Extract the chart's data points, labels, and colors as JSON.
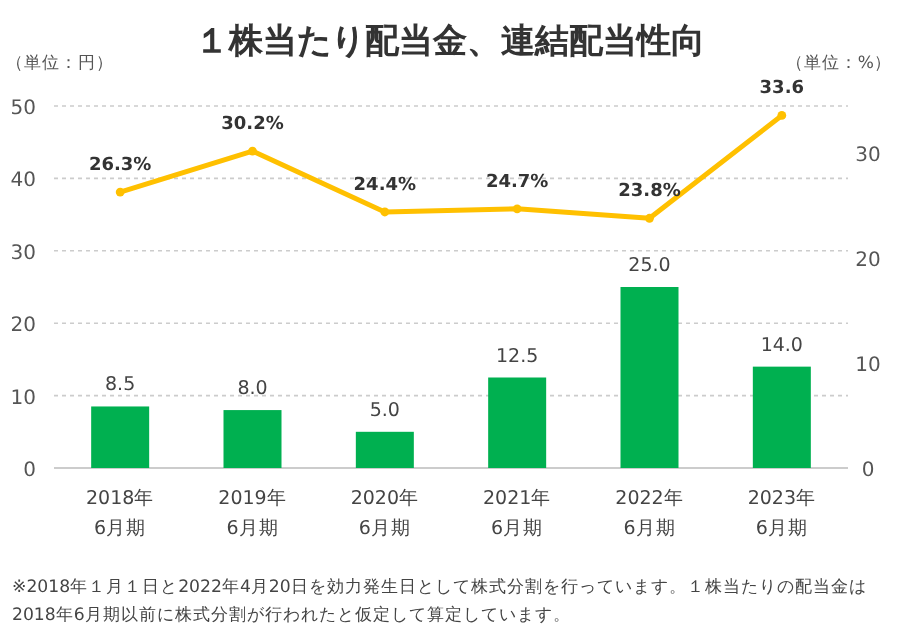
{
  "chart_data": {
    "type": "bar",
    "title": "１株当たり配当金、連結配当性向",
    "ylabel": "（単位：円）",
    "y2label": "（単位：%）",
    "categories": [
      "2018年\n6月期",
      "2019年\n6月期",
      "2020年\n6月期",
      "2021年\n6月期",
      "2022年\n6月期",
      "2023年\n6月期"
    ],
    "series": [
      {
        "color": "#00b050",
        "values": [
          8.5,
          8.0,
          5.0,
          12.5,
          25.0,
          14.0
        ],
        "value_labels": [
          "8.5",
          "8.0",
          "5.0",
          "12.5",
          "25.0",
          "14.0"
        ]
      },
      {
        "type": "line",
        "axis": "y2",
        "color": "#ffc000",
        "marker": "circle",
        "values": [
          26.3,
          30.2,
          24.4,
          24.7,
          23.8,
          33.6
        ],
        "value_labels": [
          "26.3%",
          "30.2%",
          "24.4%",
          "24.7%",
          "23.8%",
          "33.6"
        ]
      }
    ],
    "ylim": [
      0,
      50
    ],
    "yticks": [
      0,
      10,
      20,
      30,
      40,
      50
    ],
    "y2lim": [
      0,
      34.5
    ],
    "y2ticks": [
      0,
      10,
      20,
      30
    ],
    "grid": "y",
    "annotations": [
      "※2018年１月１日と2022年4月20日を効力発生日として株式分割を行っています。１株当たりの配当金は2018年6月期以前に株式分割が行われたと仮定して算定しています。"
    ]
  }
}
